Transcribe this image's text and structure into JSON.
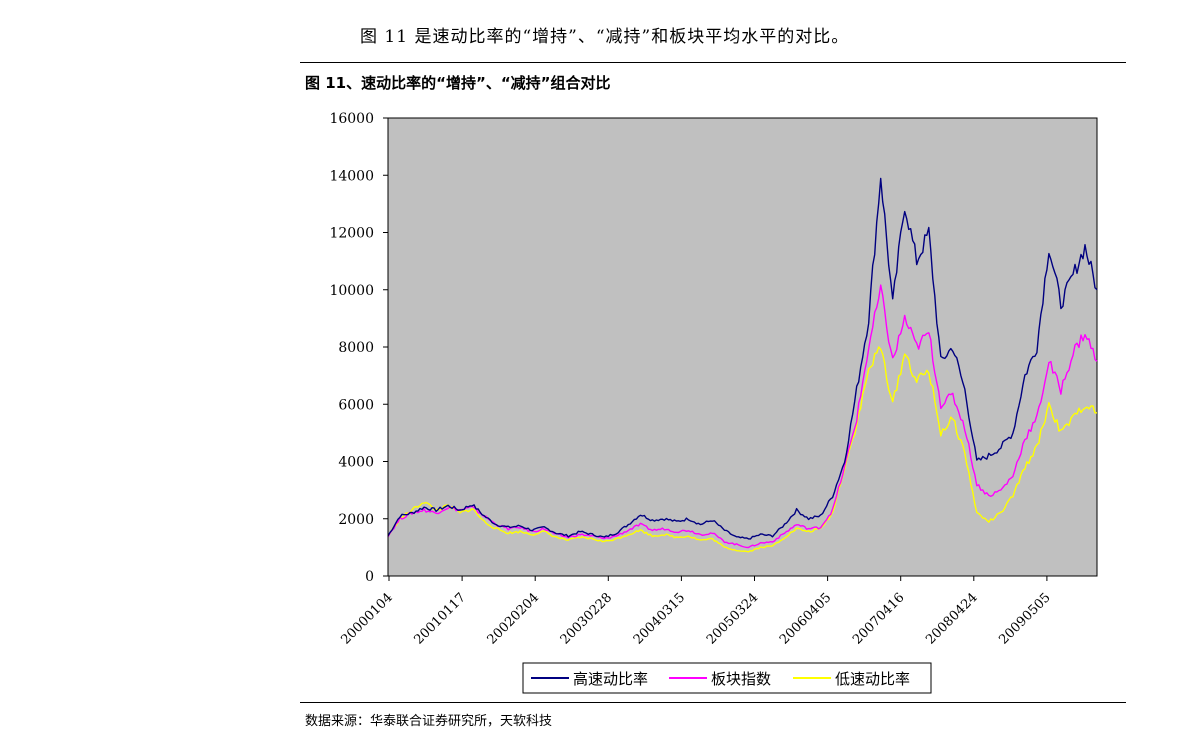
{
  "intro_text": "图 11 是速动比率的“增持”、“减持”和板块平均水平的对比。",
  "figure_title": "图 11、速动比率的“增持”、“减持”组合对比",
  "source_text": "数据来源：华泰联合证券研究所，天软科技",
  "chart_data": {
    "type": "line",
    "title": "",
    "xlabel": "",
    "ylabel": "",
    "ylim": [
      0,
      16000
    ],
    "yticks": [
      0,
      2000,
      4000,
      6000,
      8000,
      10000,
      12000,
      14000,
      16000
    ],
    "ytick_labels": [
      "0",
      "2000",
      "4000",
      "6000",
      "8000",
      "10000",
      "12000",
      "14000",
      "16000"
    ],
    "xtick_labels": [
      "20000104",
      "20010117",
      "20020204",
      "20030228",
      "20040315",
      "20050324",
      "20060405",
      "20070416",
      "20080424",
      "20090505"
    ],
    "grid": false,
    "legend": "bottom",
    "background": "#c0c0c0",
    "series": [
      {
        "name": "高速动比率",
        "color": "#000080",
        "values": [
          1400,
          2100,
          2200,
          2400,
          2300,
          2450,
          2300,
          2500,
          2100,
          1800,
          1700,
          1750,
          1600,
          1700,
          1500,
          1400,
          1550,
          1450,
          1350,
          1500,
          1800,
          2150,
          1950,
          2000,
          1900,
          2000,
          1800,
          1950,
          1600,
          1350,
          1300,
          1450,
          1400,
          1800,
          2300,
          2000,
          2100,
          2800,
          4000,
          6500,
          9000,
          14000,
          9500,
          13000,
          11000,
          12000,
          7500,
          8000,
          6500,
          4000,
          4200,
          4500,
          5000,
          7000,
          8000,
          11500,
          9500,
          10500,
          11500,
          10000
        ]
      },
      {
        "name": "板块指数",
        "color": "#ff00ff",
        "values": [
          1400,
          2000,
          2200,
          2300,
          2200,
          2400,
          2300,
          2400,
          2100,
          1800,
          1650,
          1700,
          1550,
          1650,
          1450,
          1350,
          1450,
          1400,
          1300,
          1400,
          1600,
          1800,
          1600,
          1650,
          1550,
          1600,
          1450,
          1500,
          1200,
          1100,
          1000,
          1150,
          1200,
          1500,
          1800,
          1650,
          1700,
          2300,
          3800,
          5500,
          8000,
          10000,
          7500,
          9000,
          8000,
          8500,
          6000,
          6300,
          5200,
          3200,
          2800,
          3000,
          3500,
          4800,
          5500,
          7500,
          6500,
          7800,
          8500,
          7500
        ]
      },
      {
        "name": "低速动比率",
        "color": "#ffff00",
        "values": [
          1400,
          2000,
          2300,
          2600,
          2300,
          2450,
          2200,
          2350,
          1900,
          1650,
          1500,
          1550,
          1450,
          1550,
          1350,
          1250,
          1350,
          1300,
          1200,
          1300,
          1450,
          1600,
          1400,
          1450,
          1350,
          1400,
          1250,
          1300,
          1000,
          900,
          850,
          1000,
          1050,
          1350,
          1650,
          1550,
          1650,
          2200,
          3800,
          5300,
          7200,
          8000,
          6000,
          7800,
          6800,
          7200,
          5000,
          5500,
          4300,
          2200,
          1900,
          2200,
          2800,
          3800,
          4500,
          6000,
          5000,
          5500,
          6000,
          5700
        ]
      }
    ]
  }
}
